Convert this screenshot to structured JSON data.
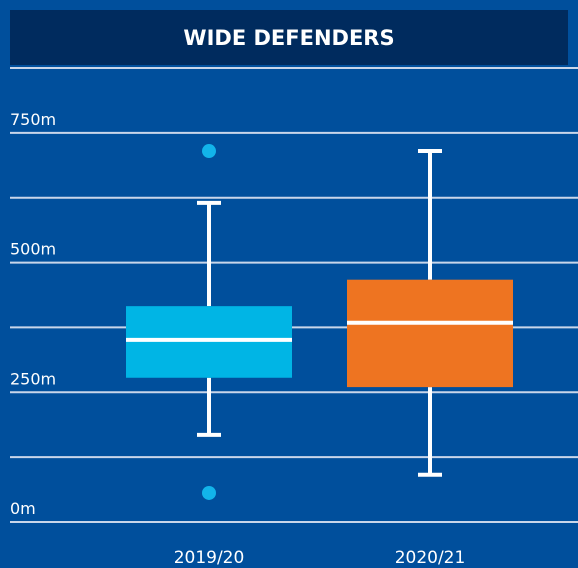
{
  "chart_data": {
    "type": "box",
    "title": "WIDE DEFENDERS",
    "categories": [
      "2019/20",
      "2020/21"
    ],
    "boxes": [
      {
        "min": 168,
        "q1": 278,
        "median": 351,
        "q3": 416,
        "max": 615,
        "outliers": [
          715,
          56
        ],
        "color": "#00b5e5"
      },
      {
        "min": 91,
        "q1": 260,
        "median": 384,
        "q3": 467,
        "max": 715,
        "outliers": [],
        "color": "#ee7421"
      }
    ],
    "outlier_color": "#12b4ea",
    "ylim": [
      0,
      875
    ],
    "yticks": [
      {
        "value": 0,
        "label": "0m"
      },
      {
        "value": 250,
        "label": "250m"
      },
      {
        "value": 500,
        "label": "500m"
      },
      {
        "value": 750,
        "label": "750m"
      }
    ],
    "minor_yticks": [
      125,
      375,
      625,
      875
    ],
    "grid": true
  }
}
